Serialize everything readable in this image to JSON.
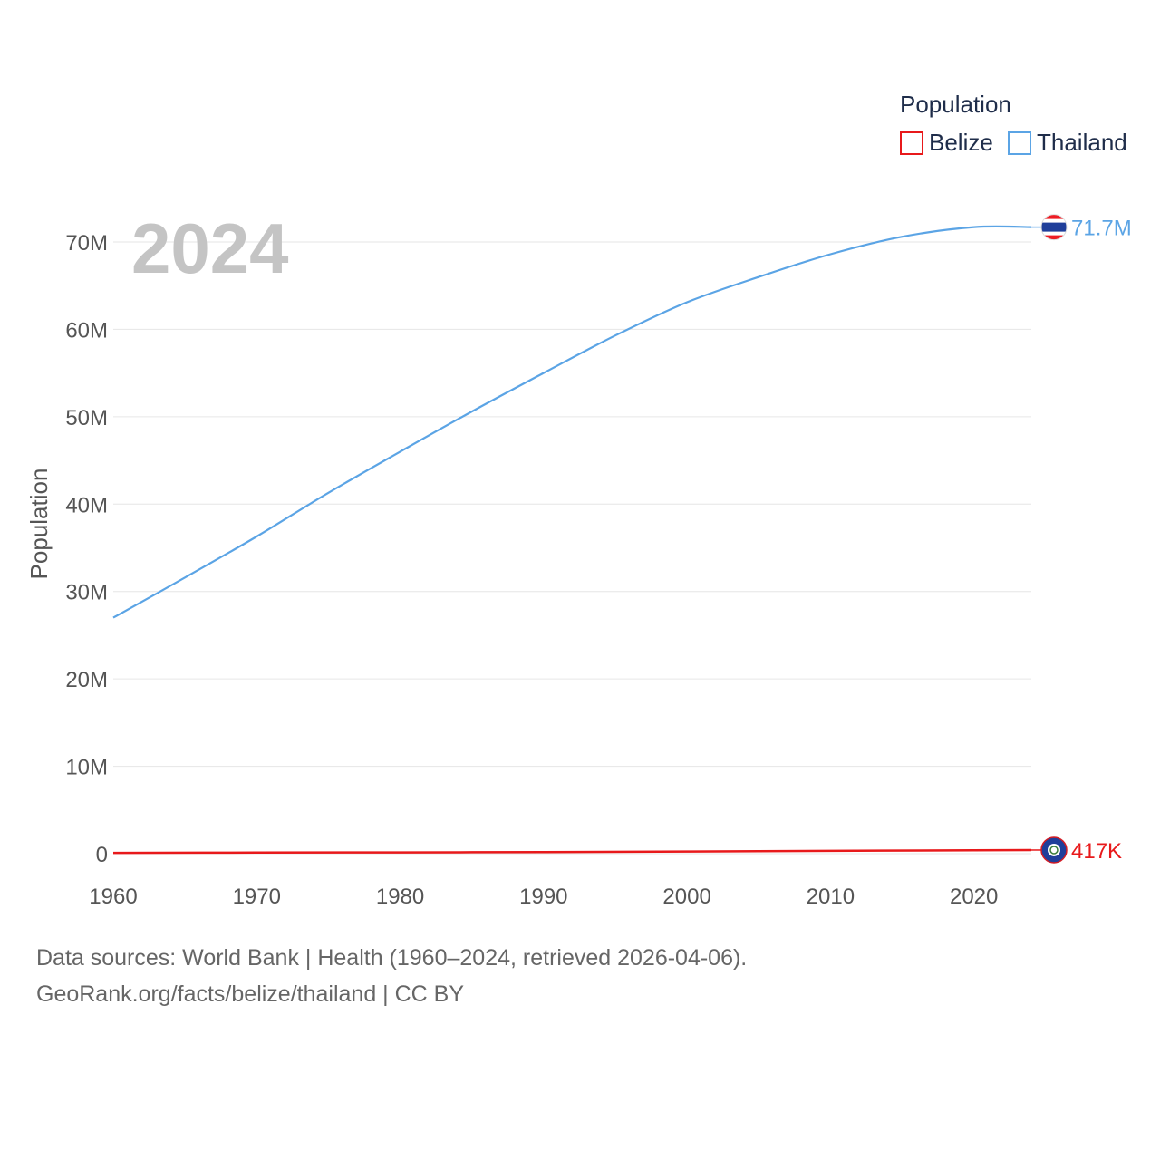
{
  "chart_data": {
    "type": "line",
    "ylabel": "Population",
    "year_label": "2024",
    "legend": {
      "title": "Population",
      "placement": "top-right",
      "items": [
        {
          "name": "Belize",
          "color": "#e8191b"
        },
        {
          "name": "Thailand",
          "color": "#5ba4e5"
        }
      ]
    },
    "xlim": [
      1960,
      2024
    ],
    "ylim": [
      0,
      70000000
    ],
    "x_ticks": [
      {
        "value": 1960,
        "label": "1960"
      },
      {
        "value": 1970,
        "label": "1970"
      },
      {
        "value": 1980,
        "label": "1980"
      },
      {
        "value": 1990,
        "label": "1990"
      },
      {
        "value": 2000,
        "label": "2000"
      },
      {
        "value": 2010,
        "label": "2010"
      },
      {
        "value": 2020,
        "label": "2020"
      }
    ],
    "y_ticks": [
      {
        "value": 0,
        "label": "0"
      },
      {
        "value": 10000000,
        "label": "10M"
      },
      {
        "value": 20000000,
        "label": "20M"
      },
      {
        "value": 30000000,
        "label": "30M"
      },
      {
        "value": 40000000,
        "label": "40M"
      },
      {
        "value": 50000000,
        "label": "50M"
      },
      {
        "value": 60000000,
        "label": "60M"
      },
      {
        "value": 70000000,
        "label": "70M"
      }
    ],
    "series": [
      {
        "name": "Thailand",
        "color": "#5ba4e5",
        "end_label": "71.7M",
        "flag": "thailand-flag",
        "x": [
          1960,
          1965,
          1970,
          1975,
          1980,
          1985,
          1990,
          1995,
          2000,
          2005,
          2010,
          2015,
          2020,
          2024
        ],
        "values": [
          27000000,
          31600000,
          36300000,
          41300000,
          46000000,
          50600000,
          55000000,
          59300000,
          63100000,
          66000000,
          68600000,
          70600000,
          71700000,
          71700000
        ]
      },
      {
        "name": "Belize",
        "color": "#e8191b",
        "end_label": "417K",
        "flag": "belize-flag",
        "x": [
          1960,
          1970,
          1980,
          1990,
          2000,
          2010,
          2020,
          2024
        ],
        "values": [
          92000,
          122000,
          145000,
          182000,
          247000,
          322000,
          398000,
          417000
        ]
      }
    ]
  },
  "footer": {
    "line1": "Data sources: World Bank | Health (1960–2024, retrieved 2026-04-06).",
    "line2": "GeoRank.org/facts/belize/thailand | CC BY"
  }
}
